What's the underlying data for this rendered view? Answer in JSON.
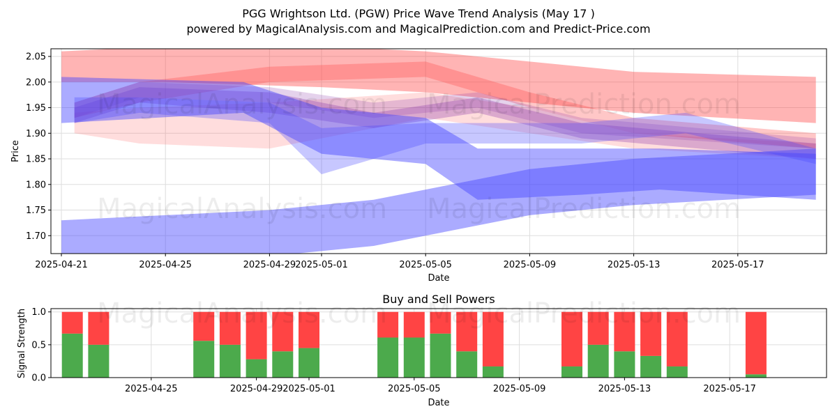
{
  "title": {
    "line1": "PGG Wrightson Ltd. (PGW) Price Wave Trend Analysis (May 17 )",
    "line2": "powered by MagicalAnalysis.com and MagicalPrediction.com and Predict-Price.com"
  },
  "watermarks": {
    "analysis": "MagicalAnalysis.com",
    "prediction": "MagicalPrediction.com"
  },
  "colors": {
    "red_band": "#ff4444",
    "blue_band": "#4444ff",
    "purple_band": "#8833aa",
    "buy": "#4caa4c",
    "sell": "#ff4444",
    "grid": "#dddddd"
  },
  "chart_data": [
    {
      "type": "area",
      "title": "",
      "xlabel": "Date",
      "ylabel": "Price",
      "ylim": [
        1.665,
        2.065
      ],
      "x_tick_labels": [
        "2025-04-21",
        "2025-04-25",
        "2025-04-29",
        "2025-05-01",
        "2025-05-05",
        "2025-05-09",
        "2025-05-13",
        "2025-05-17"
      ],
      "x_tick_days": [
        0,
        4,
        8,
        10,
        14,
        18,
        22,
        26
      ],
      "y_ticks": [
        1.7,
        1.75,
        1.8,
        1.85,
        1.9,
        1.95,
        2.0,
        2.05
      ],
      "y_tick_labels": [
        "1.70",
        "1.75",
        "1.80",
        "1.85",
        "1.90",
        "1.95",
        "2.00",
        "2.05"
      ],
      "grid": true,
      "series": [
        {
          "name": "red-wave-top",
          "color": "red",
          "opacity": 0.4,
          "x": [
            0,
            4,
            10,
            14,
            18,
            22,
            29
          ],
          "upper": [
            2.06,
            2.07,
            2.07,
            2.06,
            2.04,
            2.02,
            2.01
          ],
          "lower": [
            2.0,
            2.0,
            1.99,
            1.98,
            1.96,
            1.94,
            1.92
          ]
        },
        {
          "name": "red-wave-mid",
          "color": "red",
          "opacity": 0.3,
          "x": [
            0.5,
            3,
            8,
            14,
            18,
            22,
            29
          ],
          "upper": [
            1.96,
            2.0,
            2.03,
            2.04,
            1.98,
            1.93,
            1.9
          ],
          "lower": [
            1.93,
            1.96,
            2.0,
            2.01,
            1.95,
            1.9,
            1.87
          ]
        },
        {
          "name": "red-wave-low",
          "color": "red",
          "opacity": 0.18,
          "x": [
            0.5,
            3,
            8,
            14,
            18,
            22,
            29
          ],
          "upper": [
            1.94,
            1.95,
            1.96,
            1.98,
            1.95,
            1.9,
            1.88
          ],
          "lower": [
            1.9,
            1.88,
            1.87,
            1.93,
            1.9,
            1.87,
            1.85
          ]
        },
        {
          "name": "purple-wave-1",
          "color": "purple",
          "opacity": 0.3,
          "x": [
            0.5,
            3,
            8,
            12,
            16,
            20,
            29
          ],
          "upper": [
            1.95,
            1.99,
            1.98,
            1.94,
            1.97,
            1.92,
            1.88
          ],
          "lower": [
            1.92,
            1.96,
            1.94,
            1.91,
            1.94,
            1.89,
            1.85
          ]
        },
        {
          "name": "purple-wave-2",
          "color": "purple",
          "opacity": 0.22,
          "x": [
            0.5,
            3,
            8,
            12,
            16,
            20,
            29
          ],
          "upper": [
            1.96,
            2.0,
            1.99,
            1.96,
            1.98,
            1.93,
            1.89
          ],
          "lower": [
            1.93,
            1.97,
            1.96,
            1.93,
            1.95,
            1.9,
            1.87
          ]
        },
        {
          "name": "blue-wave-top",
          "color": "blue",
          "opacity": 0.45,
          "x": [
            0,
            7,
            10,
            14,
            16,
            20,
            23,
            29
          ],
          "upper": [
            2.01,
            2.0,
            1.95,
            1.93,
            1.87,
            1.87,
            1.87,
            1.86
          ],
          "lower": [
            1.92,
            1.94,
            1.86,
            1.84,
            1.77,
            1.78,
            1.79,
            1.77
          ]
        },
        {
          "name": "blue-wave-mid",
          "color": "blue",
          "opacity": 0.3,
          "x": [
            0.5,
            3,
            8,
            10,
            14,
            20,
            24,
            29
          ],
          "upper": [
            1.97,
            1.97,
            1.96,
            1.91,
            1.92,
            1.92,
            1.94,
            1.87
          ],
          "lower": [
            1.92,
            1.94,
            1.92,
            1.82,
            1.88,
            1.88,
            1.9,
            1.84
          ]
        },
        {
          "name": "blue-wave-low",
          "color": "blue",
          "opacity": 0.45,
          "x": [
            0,
            4,
            8,
            12,
            14,
            18,
            22,
            29
          ],
          "upper": [
            1.73,
            1.74,
            1.75,
            1.77,
            1.79,
            1.83,
            1.85,
            1.87
          ],
          "lower": [
            1.66,
            1.66,
            1.66,
            1.68,
            1.7,
            1.74,
            1.76,
            1.78
          ]
        }
      ]
    },
    {
      "type": "bar",
      "title": "Buy and Sell Powers",
      "xlabel": "Date",
      "ylabel": "Signal Strength",
      "ylim": [
        0,
        1.05
      ],
      "y_ticks": [
        0.0,
        0.5,
        1.0
      ],
      "y_tick_labels": [
        "0.0",
        "0.5",
        "1.0"
      ],
      "x_tick_labels": [
        "2025-04-25",
        "2025-04-29",
        "2025-05-01",
        "2025-05-05",
        "2025-05-09",
        "2025-05-13",
        "2025-05-17"
      ],
      "x_tick_days": [
        4,
        8,
        10,
        14,
        18,
        22,
        26
      ],
      "grid": true,
      "series": [
        {
          "name": "Buy",
          "color": "green"
        },
        {
          "name": "Sell",
          "color": "red"
        }
      ],
      "days": [
        1,
        2,
        6,
        7,
        8,
        9,
        10,
        13,
        14,
        15,
        16,
        17,
        20,
        21,
        22,
        23,
        24,
        27
      ],
      "buy": [
        0.67,
        0.5,
        0.56,
        0.5,
        0.28,
        0.4,
        0.45,
        0.61,
        0.61,
        0.67,
        0.4,
        0.17,
        0.17,
        0.5,
        0.4,
        0.33,
        0.17,
        0.05
      ],
      "sell": [
        0.33,
        0.5,
        0.44,
        0.5,
        0.72,
        0.6,
        0.55,
        0.39,
        0.39,
        0.33,
        0.6,
        0.83,
        0.83,
        0.5,
        0.6,
        0.67,
        0.83,
        0.95
      ]
    }
  ]
}
